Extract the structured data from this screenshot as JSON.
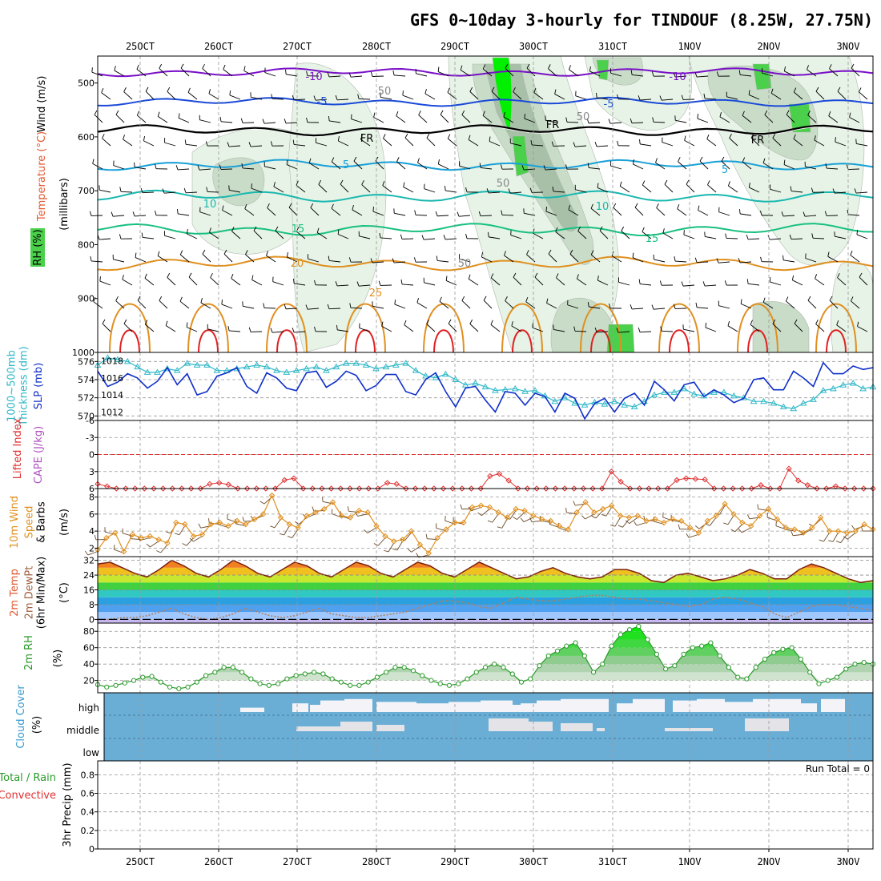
{
  "title": "GFS 0~10day 3-hourly for TINDOUF (8.25W, 27.75N)",
  "run_total": "Run Total = 0",
  "colors": {
    "temp_contour_cold": "#7a10c8",
    "temp_contour_blue": "#1a4ad8",
    "temp_contour_cyan": "#18a0d8",
    "temp_contour_teal": "#18b8b0",
    "temp_contour_green": "#18c080",
    "temp_contour_orange": "#e09020",
    "temp_contour_red": "#e02020",
    "rh_light": "#e6f3e6",
    "rh_mid": "#c8dcc8",
    "rh_dark": "#a8c0a8",
    "rh_green": "#4ad04a",
    "rh_bright": "#00f000",
    "slp": "#1030c8",
    "thickness": "#30b8c8",
    "lifted": "#e03030",
    "wind10": "#e09020",
    "barb": "#6a4a2a",
    "rh2m": "#2a9a2a",
    "cloud_blue": "#6aaed6",
    "cloud_white": "#f4f4f8",
    "cloud_gray": "#e4e4e8"
  },
  "chart_data": [
    {
      "panel": "upper-air",
      "type": "contour",
      "x_dates": [
        "25OCT",
        "26OCT",
        "27OCT",
        "28OCT",
        "29OCT",
        "30OCT",
        "31OCT",
        "1NOV",
        "2NOV",
        "3NOV"
      ],
      "y_ticks": [
        "500",
        "600",
        "700",
        "800",
        "900",
        "1000"
      ],
      "ylabel_lines": [
        "Wind (m/s)",
        "Temperature (°C)",
        "RH (%)",
        "(millibars)"
      ],
      "contour_labels": [
        "-10",
        "-10",
        "-5",
        "-5",
        "FR",
        "FR",
        "FR",
        "5",
        "5",
        "10",
        "10",
        "15",
        "15",
        "20",
        "25",
        "50",
        "50",
        "50",
        "50"
      ],
      "ylim": [
        450,
        1000
      ]
    },
    {
      "panel": "slp-thickness",
      "type": "line",
      "ylabel_left": "1000~500mb Thickness (dm)",
      "ylabel_right": "SLP (mb)",
      "left_ticks": [
        "576",
        "574",
        "572",
        "570"
      ],
      "right_ticks": [
        "1018",
        "1016",
        "1014",
        "1012"
      ],
      "series": [
        {
          "name": "SLP (mb)",
          "values": [
            1016.8,
            1015.0,
            1015.5,
            1016.5,
            1016.0,
            1014.8,
            1015.6,
            1017.2,
            1015.2,
            1016.5,
            1014.0,
            1014.4,
            1016.2,
            1016.6,
            1017.2,
            1015.0,
            1014.2,
            1016.6,
            1016.0,
            1014.8,
            1014.5,
            1016.6,
            1016.8,
            1014.9,
            1015.6,
            1016.8,
            1016.3,
            1014.5,
            1015.1,
            1016.4,
            1016.4,
            1014.4,
            1014.0,
            1015.8,
            1016.6,
            1014.4,
            1012.6,
            1014.8,
            1015.0,
            1013.4,
            1012.0,
            1014.4,
            1014.2,
            1012.8,
            1014.2,
            1013.8,
            1012.0,
            1014.2,
            1013.6,
            1011.2,
            1013.0,
            1013.6,
            1012.0,
            1013.6,
            1014.2,
            1012.8,
            1015.6,
            1014.6,
            1013.3,
            1015.2,
            1015.5,
            1013.8,
            1014.6,
            1014.0,
            1013.1,
            1013.6,
            1015.8,
            1016.0,
            1014.6,
            1014.6,
            1016.8,
            1016.0,
            1015.0,
            1017.8,
            1016.5,
            1016.5,
            1017.4,
            1017.0,
            1017.2
          ]
        },
        {
          "name": "1000~500mb Thickness (dm)",
          "values": [
            575.6,
            576.4,
            576.2,
            576.0,
            575.4,
            574.8,
            574.8,
            575.2,
            575.0,
            575.8,
            575.6,
            575.6,
            575.0,
            575.0,
            575.2,
            575.4,
            575.6,
            575.4,
            575.0,
            574.8,
            575.0,
            575.2,
            575.4,
            575.0,
            575.4,
            575.8,
            575.8,
            575.6,
            575.2,
            575.4,
            575.6,
            575.8,
            575.0,
            574.4,
            574.2,
            574.6,
            574.0,
            573.4,
            573.6,
            573.2,
            572.8,
            572.9,
            573.0,
            572.7,
            572.8,
            572.2,
            571.6,
            572.0,
            571.4,
            571.2,
            571.5,
            571.3,
            571.6,
            571.2,
            571.0,
            571.6,
            572.3,
            572.6,
            572.6,
            573.0,
            572.4,
            572.2,
            572.6,
            572.6,
            572.2,
            572.0,
            571.6,
            571.6,
            571.4,
            571.0,
            570.8,
            571.4,
            571.8,
            572.8,
            573.0,
            573.4,
            573.6,
            573.0,
            573.2
          ]
        }
      ],
      "ylim_left": [
        569.5,
        577
      ],
      "ylim_right": [
        1011,
        1019
      ]
    },
    {
      "panel": "lifted-index-cape",
      "type": "line",
      "ylabel_lines": [
        "Lifted Index",
        "CAPE (J/kg)"
      ],
      "y_ticks": [
        "-6",
        "-3",
        "0",
        "3",
        "6"
      ],
      "ylim": [
        -6,
        6
      ],
      "series": [
        {
          "name": "Lifted Index",
          "values": [
            5.2,
            5.6,
            6,
            6,
            6,
            6,
            6,
            6,
            6,
            6,
            6,
            6,
            5.2,
            5.0,
            5.3,
            6,
            6,
            6,
            6,
            6,
            4.5,
            4.2,
            6,
            6,
            6,
            6,
            6,
            6,
            6,
            6,
            6,
            5.0,
            5.2,
            6,
            6,
            6,
            6,
            6,
            6,
            6,
            6,
            6,
            3.8,
            3.4,
            4.6,
            6,
            6,
            6,
            6,
            6,
            6,
            6,
            6,
            6,
            6,
            3.0,
            4.8,
            6,
            6,
            6,
            6,
            6,
            4.5,
            4.2,
            4.3,
            4.4,
            6,
            6,
            6,
            6,
            6,
            5.4,
            6,
            6,
            2.5,
            4.6,
            5.4,
            6,
            6,
            5.6,
            6,
            6,
            6,
            6
          ]
        }
      ]
    },
    {
      "panel": "wind10m",
      "type": "line",
      "ylabel_lines": [
        "10m Wind",
        "Speed",
        "& Barbs",
        "(m/s)"
      ],
      "y_ticks": [
        "2",
        "4",
        "6",
        "8"
      ],
      "ylim": [
        1,
        9
      ],
      "series": [
        {
          "name": "10m Wind Speed",
          "values": [
            1.8,
            3.2,
            3.8,
            1.6,
            3.6,
            3.2,
            3.4,
            3.0,
            2.6,
            5.0,
            4.8,
            3.4,
            3.6,
            4.8,
            5.0,
            4.6,
            5.2,
            4.8,
            5.4,
            6.0,
            8.2,
            5.6,
            4.8,
            4.4,
            5.8,
            6.2,
            6.6,
            7.4,
            5.8,
            5.6,
            6.4,
            6.2,
            4.6,
            3.4,
            2.8,
            3.0,
            4.0,
            2.4,
            1.4,
            3.2,
            4.2,
            5.0,
            5.0,
            6.8,
            7.0,
            6.8,
            6.2,
            5.6,
            6.6,
            6.4,
            5.8,
            5.4,
            5.2,
            4.6,
            4.2,
            6.2,
            7.4,
            6.2,
            6.6,
            7.0,
            5.8,
            5.6,
            5.8,
            5.2,
            5.4,
            5.0,
            5.4,
            5.2,
            4.4,
            3.8,
            5.2,
            5.8,
            7.2,
            6.0,
            5.0,
            4.6,
            5.8,
            6.6,
            5.4,
            4.4,
            4.2,
            3.8,
            4.4,
            5.6,
            4.0,
            4.0,
            3.8,
            4.0,
            4.8,
            4.2
          ]
        }
      ]
    },
    {
      "panel": "temp2m",
      "type": "area",
      "ylabel_lines": [
        "2m Temp",
        "2m DewPt",
        "(6hr Min/Max)",
        "(°C)"
      ],
      "y_ticks": [
        "0",
        "8",
        "16",
        "24",
        "32"
      ],
      "ylim": [
        -2,
        34
      ],
      "series": [
        {
          "name": "2m Temp",
          "values": [
            30,
            31,
            28,
            25,
            23,
            27,
            32,
            29,
            25,
            23,
            27,
            32,
            29,
            25,
            23,
            27,
            31,
            29,
            25,
            23,
            27,
            31,
            29,
            25,
            23,
            27,
            31,
            29,
            25,
            23,
            27,
            31,
            28,
            25,
            22,
            23,
            26,
            28,
            25,
            23,
            22,
            23,
            27,
            27,
            25,
            21,
            20,
            24,
            25,
            23,
            21,
            22,
            24,
            27,
            25,
            22,
            22,
            27,
            30,
            28,
            25,
            22,
            20,
            21
          ]
        },
        {
          "name": "2m DewPt",
          "values": [
            0,
            0,
            1,
            1,
            2,
            4,
            6,
            3,
            1,
            0,
            1,
            3,
            6,
            4,
            2,
            1,
            2,
            4,
            6,
            3,
            2,
            1,
            1,
            2,
            3,
            4,
            6,
            8,
            10,
            10,
            9,
            7,
            6,
            9,
            12,
            11,
            10,
            10,
            11,
            12,
            13,
            13,
            12,
            11,
            11,
            10,
            9,
            8,
            7,
            8,
            11,
            12,
            11,
            9,
            7,
            3,
            1,
            4,
            7,
            8,
            8,
            7,
            6,
            5
          ]
        }
      ]
    },
    {
      "panel": "rh2m",
      "type": "area",
      "ylabel_lines": [
        "2m RH",
        "(%)"
      ],
      "y_ticks": [
        "20",
        "40",
        "60",
        "80"
      ],
      "ylim": [
        5,
        90
      ],
      "series": [
        {
          "name": "2m RH",
          "values": [
            15,
            12,
            14,
            17,
            20,
            24,
            25,
            18,
            12,
            10,
            12,
            18,
            26,
            30,
            36,
            36,
            30,
            22,
            16,
            14,
            16,
            22,
            26,
            28,
            30,
            28,
            22,
            18,
            14,
            14,
            18,
            24,
            30,
            36,
            36,
            32,
            26,
            20,
            16,
            14,
            16,
            22,
            30,
            36,
            40,
            36,
            28,
            18,
            22,
            38,
            50,
            56,
            62,
            66,
            50,
            30,
            40,
            62,
            76,
            82,
            86,
            70,
            52,
            34,
            38,
            52,
            60,
            62,
            66,
            50,
            36,
            24,
            22,
            36,
            46,
            54,
            58,
            60,
            46,
            30,
            16,
            20,
            24,
            34,
            40,
            42,
            40
          ]
        }
      ]
    },
    {
      "panel": "cloud-cover",
      "type": "heatmap",
      "ylabel_lines": [
        "Cloud Cover",
        "(%)"
      ],
      "levels": [
        "high",
        "middle",
        "low"
      ]
    },
    {
      "panel": "precip",
      "type": "bar",
      "ylabel_lines": [
        "Total / Rain",
        "Convective",
        "3hr Precip (mm)"
      ],
      "y_ticks": [
        "0",
        "0.2",
        "0.4",
        "0.6",
        "0.8"
      ],
      "ylim": [
        0,
        0.95
      ],
      "values": []
    }
  ]
}
